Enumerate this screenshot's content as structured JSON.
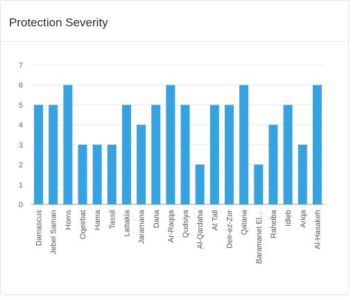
{
  "card": {
    "title": "Protection Severity"
  },
  "chart_data": {
    "type": "bar",
    "title": "Protection Severity",
    "xlabel": "",
    "ylabel": "",
    "ylim": [
      0,
      7
    ],
    "yticks": [
      0,
      1,
      2,
      3,
      4,
      5,
      6,
      7
    ],
    "grid": true,
    "legend": "none",
    "bar_color": "#36a2e0",
    "categories": [
      "Damascus",
      "Jebel Saman",
      "Homs",
      "Oqeirbat",
      "Hama",
      "Tassil",
      "Lattakia",
      "Jaramana",
      "Dana",
      "Ar-Raqqa",
      "Qudsiya",
      "Al-Qardaha",
      "At Tall",
      "Deir-ez-Zor",
      "Qatana",
      "Baramanet El…",
      "Raheiba",
      "Idleb",
      "Ariqa",
      "Al-Hasakeh"
    ],
    "values": [
      5,
      5,
      6,
      3,
      3,
      3,
      5,
      4,
      5,
      6,
      5,
      2,
      5,
      5,
      6,
      2,
      4,
      5,
      3,
      6
    ]
  }
}
